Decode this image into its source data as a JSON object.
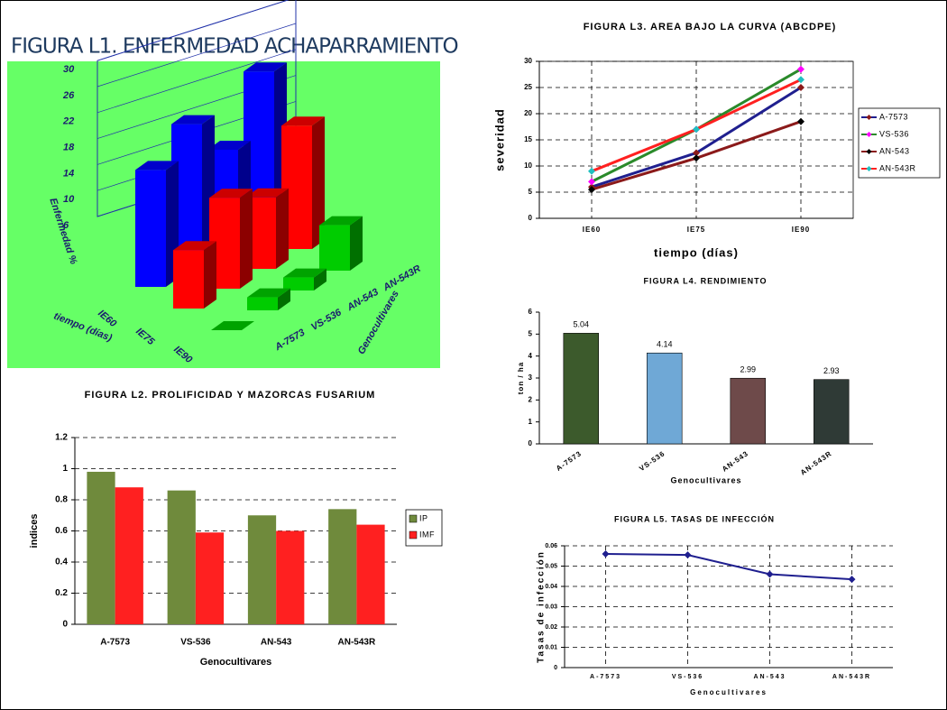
{
  "chart_data": [
    {
      "type": "bar3d",
      "title": "FIGURA L1. ENFERMEDAD ACHAPARRAMIENTO",
      "y_label": "Enfermedad %",
      "x_label": "tiempo (días)",
      "depth_label": "Genocultivares",
      "categories": [
        "A-7573",
        "VS-536",
        "AN-543",
        "AN-543R"
      ],
      "series": [
        {
          "name": "IE60",
          "color": "#0000ff",
          "values": [
            24,
            28,
            21,
            30
          ]
        },
        {
          "name": "IE75",
          "color": "#ff0000",
          "values": [
            15,
            20,
            17,
            25
          ]
        },
        {
          "name": "IE90",
          "color": "#00cc00",
          "values": [
            6,
            8,
            8,
            13
          ]
        }
      ],
      "ylim": [
        6,
        30
      ],
      "yticks": [
        6,
        10,
        14,
        18,
        22,
        26,
        30
      ],
      "grid": true
    },
    {
      "type": "bar",
      "title": "FIGURA L2.  PROLIFICIDAD Y MAZORCAS FUSARIUM",
      "y_label": "indices",
      "x_label": "Genocultivares",
      "categories": [
        "A-7573",
        "VS-536",
        "AN-543",
        "AN-543R"
      ],
      "series": [
        {
          "name": "IP",
          "color": "#6f8a3c",
          "values": [
            0.98,
            0.86,
            0.7,
            0.74
          ]
        },
        {
          "name": "IMF",
          "color": "#ff2020",
          "values": [
            0.88,
            0.59,
            0.6,
            0.64
          ]
        }
      ],
      "ylim": [
        0,
        1.2
      ],
      "yticks": [
        0,
        0.2,
        0.4,
        0.6,
        0.8,
        1,
        1.2
      ],
      "grid": true,
      "legend": "right"
    },
    {
      "type": "line",
      "title": "FIGURA L3. AREA BAJO LA CURVA (ABCDPE)",
      "y_label": "severidad",
      "x_label": "tiempo (días)",
      "categories": [
        "IE60",
        "IE75",
        "IE90"
      ],
      "series": [
        {
          "name": "A-7573",
          "color": "#1f1f8f",
          "marker_color": "#8b1a1a",
          "values": [
            6,
            12.5,
            25
          ]
        },
        {
          "name": "VS-536",
          "color": "#2a8a2a",
          "marker_color": "#ff00ff",
          "values": [
            7,
            17,
            28.5
          ]
        },
        {
          "name": "AN-543",
          "color": "#8b1a1a",
          "marker_color": "#000000",
          "values": [
            5.5,
            11.5,
            18.5
          ]
        },
        {
          "name": "AN-543R",
          "color": "#ff2020",
          "marker_color": "#20c0c0",
          "values": [
            9,
            17,
            26.5
          ]
        }
      ],
      "ylim": [
        0,
        30
      ],
      "yticks": [
        0,
        5,
        10,
        15,
        20,
        25,
        30
      ],
      "grid": true,
      "legend": "right"
    },
    {
      "type": "bar",
      "title": "FIGURA L4. RENDIMIENTO",
      "y_label": "ton / ha",
      "x_label": "Genocultivares",
      "categories": [
        "A-7573",
        "VS-536",
        "AN-543",
        "AN-543R"
      ],
      "values": [
        5.04,
        4.14,
        2.99,
        2.93
      ],
      "colors": [
        "#3c5a2c",
        "#6fa8d6",
        "#6e4a4a",
        "#2f3a36"
      ],
      "ylim": [
        0,
        6
      ],
      "yticks": [
        0,
        1,
        2,
        3,
        4,
        5,
        6
      ],
      "grid": false
    },
    {
      "type": "line",
      "title": "FIGURA L5. TASAS DE INFECCIÓN",
      "y_label": "Tasas de infección",
      "x_label": "Genocultivares",
      "categories": [
        "A-7573",
        "VS-536",
        "AN-543",
        "AN-543R"
      ],
      "series": [
        {
          "name": "Tasas de infección",
          "color": "#1f1f8f",
          "marker_color": "#1f1f8f",
          "values": [
            0.056,
            0.0555,
            0.046,
            0.0435
          ]
        }
      ],
      "ylim": [
        0,
        0.06
      ],
      "yticks": [
        0,
        0.01,
        0.02,
        0.03,
        0.04,
        0.05,
        0.06
      ],
      "grid": true
    }
  ]
}
